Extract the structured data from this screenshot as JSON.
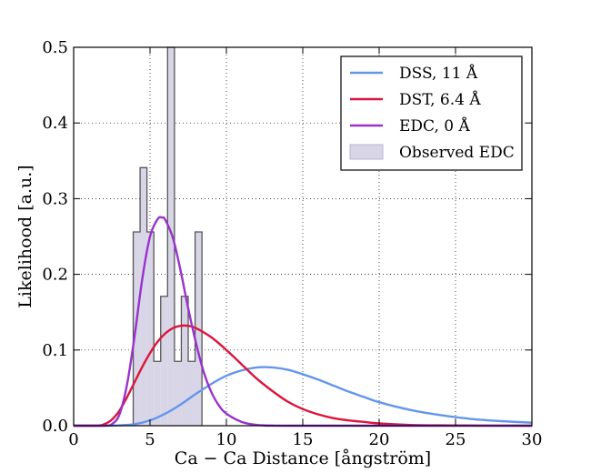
{
  "chart_data": {
    "type": "line",
    "xlabel": "Ca − Ca Distance [ångström]",
    "ylabel": "Likelihood [a.u.]",
    "xlim": [
      0,
      30
    ],
    "ylim": [
      0,
      0.5
    ],
    "x_ticks": [
      0,
      5,
      10,
      15,
      20,
      25,
      30
    ],
    "y_ticks": [
      0.0,
      0.1,
      0.2,
      0.3,
      0.4,
      0.5
    ],
    "x_tick_labels": [
      "0",
      "5",
      "10",
      "15",
      "20",
      "25",
      "30"
    ],
    "y_tick_labels": [
      "0.0",
      "0.1",
      "0.2",
      "0.3",
      "0.4",
      "0.5"
    ],
    "grid": true,
    "legend_position": "top-right",
    "series": [
      {
        "name": "DSS, 11 Å",
        "color": "#6495ed",
        "x": [
          0,
          2,
          3,
          4,
          5,
          6,
          7,
          8,
          9,
          10,
          11,
          12,
          13,
          14,
          15,
          16,
          17,
          18,
          19,
          20,
          22,
          24,
          26,
          28,
          30
        ],
        "y": [
          0,
          0,
          0.0005,
          0.002,
          0.007,
          0.016,
          0.028,
          0.042,
          0.055,
          0.066,
          0.073,
          0.077,
          0.077,
          0.074,
          0.068,
          0.061,
          0.053,
          0.045,
          0.038,
          0.031,
          0.021,
          0.014,
          0.009,
          0.006,
          0.004
        ]
      },
      {
        "name": "DST, 6.4 Å",
        "color": "#dc143c",
        "x": [
          0,
          1.5,
          2,
          2.5,
          3,
          3.5,
          4,
          4.5,
          5,
          5.5,
          6,
          6.5,
          7,
          7.5,
          8,
          9,
          10,
          11,
          12,
          13,
          14,
          15,
          16,
          17,
          18,
          19,
          20,
          22,
          24,
          26,
          28,
          30
        ],
        "y": [
          0,
          0,
          0.002,
          0.008,
          0.02,
          0.038,
          0.058,
          0.078,
          0.096,
          0.111,
          0.122,
          0.129,
          0.132,
          0.132,
          0.129,
          0.117,
          0.1,
          0.081,
          0.062,
          0.046,
          0.032,
          0.022,
          0.015,
          0.01,
          0.007,
          0.005,
          0.003,
          0.001,
          0.0005,
          0.0002,
          0.0001,
          0
        ]
      },
      {
        "name": "EDC, 0 Å",
        "color": "#9932cc",
        "x": [
          0,
          2,
          2.5,
          3,
          3.5,
          4,
          4.5,
          5,
          5.5,
          5.8,
          6,
          6.5,
          7,
          7.5,
          8,
          8.5,
          9,
          9.5,
          10,
          11,
          12,
          13,
          14,
          30
        ],
        "y": [
          0,
          0,
          0.002,
          0.015,
          0.055,
          0.12,
          0.195,
          0.25,
          0.273,
          0.275,
          0.272,
          0.248,
          0.205,
          0.155,
          0.11,
          0.072,
          0.045,
          0.027,
          0.016,
          0.005,
          0.001,
          0.0002,
          0,
          0
        ]
      }
    ],
    "histogram": {
      "name": "Observed EDC",
      "color": "#d8d6e6",
      "edge_color": "#555555",
      "bins": [
        {
          "x0": 3.9,
          "x1": 4.35,
          "y": 0.256
        },
        {
          "x0": 4.35,
          "x1": 4.8,
          "y": 0.341
        },
        {
          "x0": 4.8,
          "x1": 5.25,
          "y": 0.256
        },
        {
          "x0": 5.25,
          "x1": 5.7,
          "y": 0.085
        },
        {
          "x0": 5.7,
          "x1": 6.15,
          "y": 0.171
        },
        {
          "x0": 6.15,
          "x1": 6.6,
          "y": 0.5
        },
        {
          "x0": 6.6,
          "x1": 7.05,
          "y": 0.085
        },
        {
          "x0": 7.05,
          "x1": 7.5,
          "y": 0.171
        },
        {
          "x0": 7.5,
          "x1": 7.95,
          "y": 0.085
        },
        {
          "x0": 7.95,
          "x1": 8.4,
          "y": 0.256
        }
      ]
    }
  }
}
